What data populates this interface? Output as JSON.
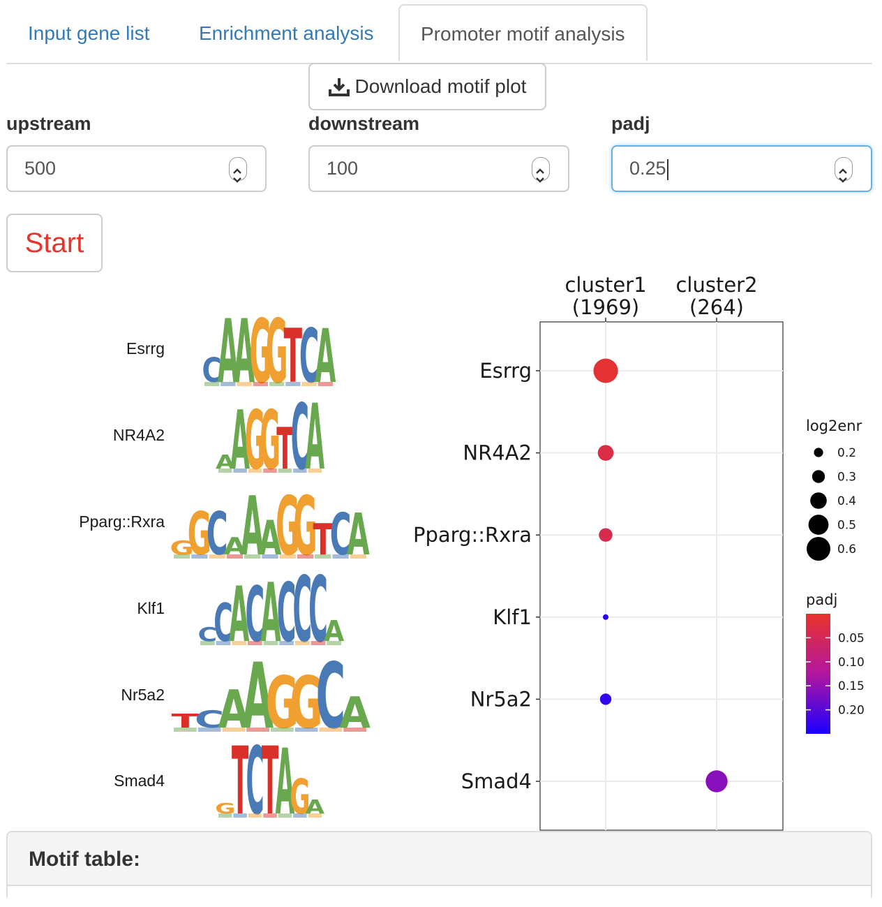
{
  "tabs": [
    {
      "label": "Input gene list"
    },
    {
      "label": "Enrichment analysis"
    },
    {
      "label": "Promoter motif analysis"
    }
  ],
  "download_button": {
    "label": "Download motif plot",
    "icon": "download-icon"
  },
  "inputs": {
    "upstream": {
      "label": "upstream",
      "value": "500"
    },
    "downstream": {
      "label": "downstream",
      "value": "100"
    },
    "padj": {
      "label": "padj",
      "value": "0.25"
    }
  },
  "start_button": {
    "label": "Start"
  },
  "motif_logos": [
    {
      "name": "Esrrg",
      "seq": "CAAGGTCA"
    },
    {
      "name": "NR4A2",
      "seq": "AAGGTCA"
    },
    {
      "name": "Pparg::Rxra",
      "seq": "GGCAAAGGTCA"
    },
    {
      "name": "Klf1",
      "seq": "CCACACCCA"
    },
    {
      "name": "Nr5a2",
      "seq": "TCAAGGCA"
    },
    {
      "name": "Smad4",
      "seq": "GTCTAGA"
    }
  ],
  "colors": {
    "A": "#6aa84f",
    "C": "#4a7ab5",
    "G": "#f0a030",
    "T": "#d9312a",
    "high": "#e8332a",
    "low": "#1a00ff"
  },
  "chart_data": {
    "type": "scatter",
    "title": "",
    "x_categories": [
      {
        "line1": "cluster1",
        "line2": "(1969)"
      },
      {
        "line1": "cluster2",
        "line2": "(264)"
      }
    ],
    "y_categories": [
      "Esrrg",
      "NR4A2",
      "Pparg::Rxra",
      "Klf1",
      "Nr5a2",
      "Smad4"
    ],
    "points": [
      {
        "motif": "Esrrg",
        "cluster": 0,
        "log2enr": 0.62,
        "padj": 0.01
      },
      {
        "motif": "NR4A2",
        "cluster": 0,
        "log2enr": 0.38,
        "padj": 0.03
      },
      {
        "motif": "Pparg::Rxra",
        "cluster": 0,
        "log2enr": 0.32,
        "padj": 0.04
      },
      {
        "motif": "Klf1",
        "cluster": 0,
        "log2enr": 0.1,
        "padj": 0.24
      },
      {
        "motif": "Nr5a2",
        "cluster": 0,
        "log2enr": 0.26,
        "padj": 0.23
      },
      {
        "motif": "Smad4",
        "cluster": 1,
        "log2enr": 0.55,
        "padj": 0.16
      }
    ],
    "size_legend": {
      "title": "log2enr",
      "values": [
        0.2,
        0.3,
        0.4,
        0.5,
        0.6
      ]
    },
    "color_legend": {
      "title": "padj",
      "range": [
        0.0,
        0.25
      ],
      "ticks": [
        0.05,
        0.1,
        0.15,
        0.2
      ],
      "tick_labels": [
        "0.05",
        "0.10",
        "0.15",
        "0.20"
      ]
    }
  },
  "panel": {
    "title": "Motif table:"
  }
}
